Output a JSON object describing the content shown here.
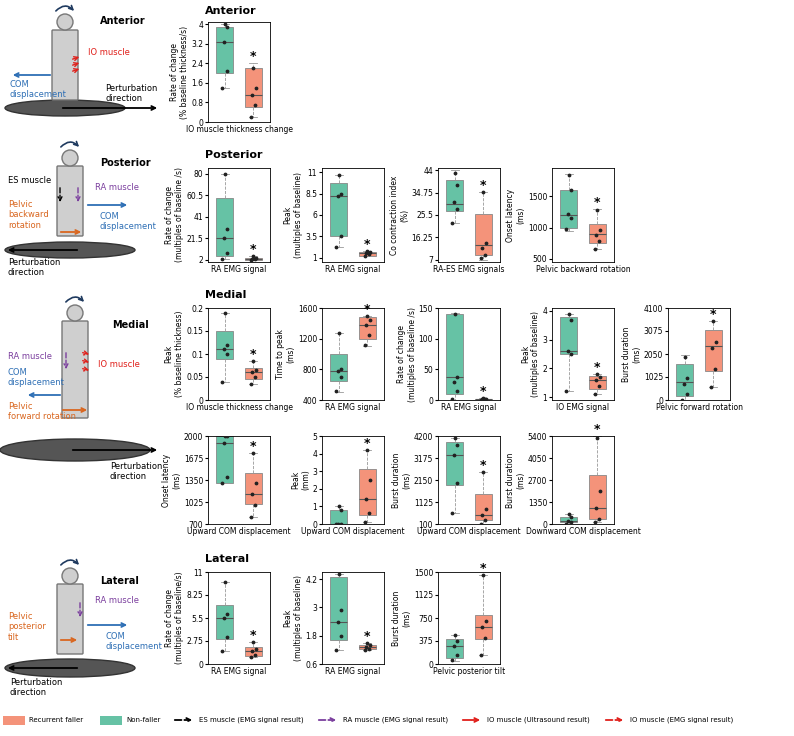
{
  "sections": [
    {
      "title": "Anterior",
      "diagram_labels": [
        "Anterior",
        "COM\ndisplacement",
        "IO muscle",
        "Perturbation\ndirection"
      ]
    },
    {
      "title": "Posterior",
      "diagram_labels": [
        "Posterior",
        "ES muscle",
        "RA muscle",
        "Pelvic\nbackward\nrotation",
        "COM\ndisplacement",
        "Perturbation\ndirection"
      ]
    },
    {
      "title": "Medial",
      "diagram_labels": [
        "Medial",
        "RA muscle",
        "COM\ndisplacement",
        "IO muscle",
        "Pelvic\nforward rotation",
        "Perturbation\ndirection"
      ]
    },
    {
      "title": "Lateral",
      "diagram_labels": [
        "Lateral",
        "RA muscle",
        "Pelvic\nposterior\ntilt",
        "COM\ndisplacement",
        "Perturbation\ndirection"
      ]
    }
  ],
  "legend": {
    "groups": [
      {
        "name": "Recurrent faller",
        "color": "#f4937a"
      },
      {
        "name": "Non-faller",
        "color": "#66c2a5"
      }
    ],
    "arrows": [
      {
        "name": "ES muscle (EMG signal result)",
        "color": "#000000",
        "line_style": "dashed"
      },
      {
        "name": "RA muscle (EMG signal result)",
        "color": "#7b3f9e",
        "line_style": "dashed"
      },
      {
        "name": "IO muscle (Ultrasound result)",
        "color": "#e0201b",
        "line_style": "solid"
      },
      {
        "name": "IO muscle (EMG signal result)",
        "color": "#e0201b",
        "line_style": "dashed"
      }
    ]
  },
  "chart_data": [
    {
      "type": "box",
      "ylabel": "Rate of change\n(% baseline thickness/s)",
      "xlabel": "IO muscle thickness change",
      "ylim": [
        0,
        4.1
      ],
      "yticks": [
        0,
        0.8,
        1.6,
        2.4,
        3.2,
        4
      ],
      "tick_labels": "y",
      "significance": "*",
      "series": [
        {
          "name": "Non-faller",
          "color": "#66c2a5",
          "whislo": 1.4,
          "q1": 2.0,
          "med": 3.3,
          "q3": 3.9,
          "whishi": 4.0,
          "points": [
            1.4,
            2.1,
            3.3,
            3.9,
            4.0
          ]
        },
        {
          "name": "Recurrent faller",
          "color": "#f4937a",
          "whislo": 0.2,
          "q1": 0.6,
          "med": 1.1,
          "q3": 2.2,
          "whishi": 2.4,
          "points": [
            0.2,
            0.7,
            1.1,
            1.4,
            2.2
          ]
        }
      ]
    },
    {
      "type": "box",
      "ylabel": "Rate of change\n(multiples of baseline /s)",
      "xlabel": "RA EMG signal",
      "ylim": [
        0,
        85
      ],
      "yticks": [
        2,
        21.5,
        41,
        60.5,
        80
      ],
      "tick_labels": "y",
      "significance": "*",
      "series": [
        {
          "name": "Non-faller",
          "color": "#66c2a5",
          "whislo": 3,
          "q1": 5,
          "med": 22,
          "q3": 58,
          "whishi": 80,
          "points": [
            3,
            8,
            22,
            30,
            80
          ]
        },
        {
          "name": "Recurrent faller",
          "color": "#f4937a",
          "whislo": 1.5,
          "q1": 2,
          "med": 2.8,
          "q3": 3.8,
          "whishi": 5,
          "points": [
            1.5,
            2.5,
            2.8,
            4,
            5
          ]
        }
      ]
    },
    {
      "type": "box",
      "ylabel": "Peak\n(multiples of baseline)",
      "xlabel": "RA EMG signal",
      "ylim": [
        0.5,
        11.5
      ],
      "yticks": [
        1,
        3.5,
        6,
        8.5,
        11
      ],
      "tick_labels": "y",
      "significance": "*",
      "series": [
        {
          "name": "Non-faller",
          "color": "#66c2a5",
          "whislo": 2.3,
          "q1": 3.5,
          "med": 8.2,
          "q3": 9.8,
          "whishi": 10.7,
          "points": [
            2.3,
            3.6,
            8.2,
            8.5,
            10.7
          ]
        },
        {
          "name": "Recurrent faller",
          "color": "#f4937a",
          "whislo": 1.2,
          "q1": 1.25,
          "med": 1.5,
          "q3": 1.7,
          "whishi": 1.8,
          "points": [
            1.2,
            1.4,
            1.5,
            1.7,
            1.8
          ]
        }
      ]
    },
    {
      "type": "box",
      "ylabel": "Co contraction index\n(%)",
      "xlabel": "RA-ES EMG signals",
      "ylim": [
        6,
        45
      ],
      "yticks": [
        7,
        16.25,
        25.5,
        34.75,
        44
      ],
      "tick_labels": "y",
      "significance": "*",
      "series": [
        {
          "name": "Non-faller",
          "color": "#66c2a5",
          "whislo": 22,
          "q1": 27,
          "med": 30,
          "q3": 40,
          "whishi": 44,
          "points": [
            22,
            28,
            31,
            38,
            43
          ]
        },
        {
          "name": "Recurrent faller",
          "color": "#f4937a",
          "whislo": 7,
          "q1": 9,
          "med": 13,
          "q3": 26,
          "whishi": 35,
          "points": [
            7.5,
            9,
            12,
            14,
            35
          ]
        }
      ]
    },
    {
      "type": "box",
      "ylabel": "Onset latency\n(ms)",
      "xlabel": "Pelvic backward rotation",
      "ylim": [
        450,
        1950
      ],
      "yticks": [
        500,
        1000,
        1500
      ],
      "tick_labels": "y",
      "significance": "*",
      "series": [
        {
          "name": "Non-faller",
          "color": "#66c2a5",
          "whislo": 950,
          "q1": 1000,
          "med": 1200,
          "q3": 1600,
          "whishi": 1850,
          "points": [
            980,
            1150,
            1220,
            1600,
            1840
          ]
        },
        {
          "name": "Recurrent faller",
          "color": "#f4937a",
          "whislo": 650,
          "q1": 750,
          "med": 900,
          "q3": 1050,
          "whishi": 1300,
          "points": [
            660,
            780,
            880,
            960,
            1280
          ]
        }
      ]
    },
    {
      "type": "box",
      "ylabel": "Peak\n(% baseline thickness)",
      "xlabel": "IO muscle thickness change",
      "ylim": [
        0,
        0.2
      ],
      "yticks": [
        0,
        0.05,
        0.1,
        0.15,
        0.2
      ],
      "tick_labels": "y",
      "significance": "*",
      "series": [
        {
          "name": "Non-faller",
          "color": "#66c2a5",
          "whislo": 0.04,
          "q1": 0.09,
          "med": 0.11,
          "q3": 0.15,
          "whishi": 0.19,
          "points": [
            0.04,
            0.1,
            0.11,
            0.12,
            0.19
          ]
        },
        {
          "name": "Recurrent faller",
          "color": "#f4937a",
          "whislo": 0.035,
          "q1": 0.045,
          "med": 0.06,
          "q3": 0.07,
          "whishi": 0.085,
          "points": [
            0.035,
            0.05,
            0.06,
            0.065,
            0.085
          ]
        }
      ]
    },
    {
      "type": "box",
      "ylabel": "Time to peak\n(ms)",
      "xlabel": "RA EMG signal",
      "ylim": [
        400,
        1600
      ],
      "yticks": [
        400,
        800,
        1200,
        1600
      ],
      "tick_labels": "y",
      "significance": "*",
      "series": [
        {
          "name": "Non-faller",
          "color": "#66c2a5",
          "whislo": 500,
          "q1": 650,
          "med": 780,
          "q3": 1000,
          "whishi": 1280,
          "points": [
            520,
            700,
            780,
            800,
            1280
          ]
        },
        {
          "name": "Recurrent faller",
          "color": "#f4937a",
          "whislo": 1100,
          "q1": 1200,
          "med": 1380,
          "q3": 1480,
          "whishi": 1500,
          "points": [
            1120,
            1250,
            1380,
            1450,
            1500
          ]
        }
      ]
    },
    {
      "type": "box",
      "ylabel": "Rate of change\n(multiples of baseline /s)",
      "xlabel": "RA EMG signal",
      "ylim": [
        0,
        150
      ],
      "yticks": [
        0,
        50,
        100,
        150
      ],
      "tick_labels": "y",
      "significance": "*",
      "series": [
        {
          "name": "Non-faller",
          "color": "#66c2a5",
          "whislo": 0,
          "q1": 10,
          "med": 38,
          "q3": 140,
          "whishi": 142,
          "points": [
            2,
            15,
            30,
            38,
            140
          ]
        },
        {
          "name": "Recurrent faller",
          "color": "#f4937a",
          "whislo": 0.5,
          "q1": 1,
          "med": 1.5,
          "q3": 2,
          "whishi": 2.5,
          "points": [
            0.5,
            1,
            1.5,
            2,
            2.5
          ]
        }
      ]
    },
    {
      "type": "box",
      "ylabel": "Peak\n(multiples of baseline)",
      "xlabel": "IO EMG signal",
      "ylim": [
        0.9,
        4.1
      ],
      "yticks": [
        1,
        2,
        3,
        4
      ],
      "tick_labels": "y",
      "significance": "*",
      "series": [
        {
          "name": "Non-faller",
          "color": "#66c2a5",
          "whislo": 1.2,
          "q1": 2.5,
          "med": 2.6,
          "q3": 3.8,
          "whishi": 3.9,
          "points": [
            1.2,
            2.5,
            2.6,
            3.7,
            3.9
          ]
        },
        {
          "name": "Recurrent faller",
          "color": "#f4937a",
          "whislo": 1.1,
          "q1": 1.3,
          "med": 1.6,
          "q3": 1.75,
          "whishi": 1.8,
          "points": [
            1.1,
            1.4,
            1.6,
            1.7,
            1.8
          ]
        }
      ]
    },
    {
      "type": "box",
      "ylabel": "Burst duration\n(ms)",
      "xlabel": "Pelvic forward rotation",
      "ylim": [
        0,
        4100
      ],
      "yticks": [
        0,
        1025,
        2050,
        3075,
        4100
      ],
      "tick_labels": "y",
      "significance": "*",
      "series": [
        {
          "name": "Non-faller",
          "color": "#66c2a5",
          "whislo": 0,
          "q1": 200,
          "med": 800,
          "q3": 1600,
          "whishi": 2000,
          "points": [
            0,
            250,
            700,
            1000,
            1900
          ]
        },
        {
          "name": "Recurrent faller",
          "color": "#f4937a",
          "whislo": 600,
          "q1": 1300,
          "med": 2400,
          "q3": 3100,
          "whishi": 3500,
          "points": [
            600,
            1400,
            2300,
            2600,
            3500
          ]
        }
      ]
    },
    {
      "type": "box",
      "ylabel": "Onset latency\n(ms)",
      "xlabel": "Upward COM displacement",
      "ylim": [
        700,
        2000
      ],
      "yticks": [
        700,
        1025,
        1350,
        1675,
        2000
      ],
      "tick_labels": "y",
      "significance": "*",
      "series": [
        {
          "name": "Non-faller",
          "color": "#66c2a5",
          "whislo": 1300,
          "q1": 1300,
          "med": 1900,
          "q3": 2000,
          "whishi": 2000,
          "points": [
            1300,
            1400,
            1900,
            2000,
            2000
          ]
        },
        {
          "name": "Recurrent faller",
          "color": "#f4937a",
          "whislo": 800,
          "q1": 1000,
          "med": 1150,
          "q3": 1450,
          "whishi": 1750,
          "points": [
            800,
            980,
            1150,
            1300,
            1750
          ]
        }
      ]
    },
    {
      "type": "box",
      "ylabel": "Peak\n(mm)",
      "xlabel": "Upward COM displacement",
      "ylim": [
        0,
        5
      ],
      "yticks": [
        0,
        1,
        2,
        3,
        4,
        5
      ],
      "tick_labels": "y",
      "significance": "*",
      "series": [
        {
          "name": "Non-faller",
          "color": "#66c2a5",
          "whislo": 0,
          "q1": 0,
          "med": 0,
          "q3": 0.8,
          "whishi": 1,
          "points": [
            0,
            0,
            0,
            0.8,
            1
          ]
        },
        {
          "name": "Recurrent faller",
          "color": "#f4937a",
          "whislo": 0.1,
          "q1": 0.5,
          "med": 1.4,
          "q3": 3.1,
          "whishi": 4.2,
          "points": [
            0.1,
            0.6,
            1.4,
            2.5,
            4.2
          ]
        }
      ]
    },
    {
      "type": "box",
      "ylabel": "Burst duration\n(ms)",
      "xlabel": "Upward COM displacement",
      "ylim": [
        100,
        4200
      ],
      "yticks": [
        100,
        1125,
        2150,
        3175,
        4200
      ],
      "tick_labels": "y",
      "significance": "*",
      "series": [
        {
          "name": "Non-faller",
          "color": "#66c2a5",
          "whislo": 600,
          "q1": 1900,
          "med": 3300,
          "q3": 3900,
          "whishi": 4100,
          "points": [
            600,
            2000,
            3300,
            3800,
            4100
          ]
        },
        {
          "name": "Recurrent faller",
          "color": "#f4937a",
          "whislo": 100,
          "q1": 300,
          "med": 500,
          "q3": 1500,
          "whishi": 2500,
          "points": [
            120,
            300,
            500,
            800,
            2500
          ]
        }
      ]
    },
    {
      "type": "box",
      "ylabel": "Burst duration\n(ms)",
      "xlabel": "Downward COM displacement",
      "ylim": [
        0,
        5400
      ],
      "yticks": [
        0,
        1350,
        2700,
        4050,
        5400
      ],
      "tick_labels": "y",
      "significance": "*",
      "series": [
        {
          "name": "Non-faller",
          "color": "#66c2a5",
          "whislo": 0,
          "q1": 100,
          "med": 200,
          "q3": 450,
          "whishi": 600,
          "points": [
            0,
            100,
            200,
            400,
            600
          ]
        },
        {
          "name": "Recurrent faller",
          "color": "#f4937a",
          "whislo": 100,
          "q1": 300,
          "med": 1000,
          "q3": 3000,
          "whishi": 5400,
          "points": [
            120,
            300,
            1000,
            2000,
            5300
          ]
        }
      ]
    },
    {
      "type": "box",
      "ylabel": "Rate of change\n(multiples of baseline/s)",
      "xlabel": "RA EMG signal",
      "ylim": [
        0,
        11
      ],
      "yticks": [
        0,
        2.75,
        5.5,
        8.25,
        11
      ],
      "tick_labels": "y",
      "significance": "*",
      "series": [
        {
          "name": "Non-faller",
          "color": "#66c2a5",
          "whislo": 1.5,
          "q1": 3,
          "med": 5.5,
          "q3": 7,
          "whishi": 9.8,
          "points": [
            1.5,
            3.2,
            5.5,
            6,
            9.8
          ]
        },
        {
          "name": "Recurrent faller",
          "color": "#f4937a",
          "whislo": 0.8,
          "q1": 1,
          "med": 1.5,
          "q3": 2,
          "whishi": 2.6,
          "points": [
            0.8,
            1.1,
            1.5,
            1.8,
            2.6
          ]
        }
      ]
    },
    {
      "type": "box",
      "ylabel": "Peak\n(multiples of baseline)",
      "xlabel": "RA EMG signal",
      "ylim": [
        0.6,
        4.5
      ],
      "yticks": [
        0.6,
        1.8,
        3,
        4.2
      ],
      "tick_labels": "y",
      "significance": "*",
      "series": [
        {
          "name": "Non-faller",
          "color": "#66c2a5",
          "whislo": 1.2,
          "q1": 1.6,
          "med": 2.4,
          "q3": 4.3,
          "whishi": 4.4,
          "points": [
            1.2,
            1.8,
            2.4,
            2.9,
            4.4
          ]
        },
        {
          "name": "Recurrent faller",
          "color": "#f4937a",
          "whislo": 1.2,
          "q1": 1.25,
          "med": 1.3,
          "q3": 1.4,
          "whishi": 1.5,
          "points": [
            1.2,
            1.25,
            1.3,
            1.4,
            1.5
          ]
        }
      ]
    },
    {
      "type": "box",
      "ylabel": "Burst duration\n(ms)",
      "xlabel": "Pelvic posterior tilt",
      "ylim": [
        0,
        1500
      ],
      "yticks": [
        0,
        375,
        750,
        1125,
        1500
      ],
      "tick_labels": "y",
      "significance": "*",
      "series": [
        {
          "name": "Non-faller",
          "color": "#66c2a5",
          "whislo": 50,
          "q1": 100,
          "med": 300,
          "q3": 400,
          "whishi": 480,
          "points": [
            60,
            150,
            300,
            380,
            480
          ]
        },
        {
          "name": "Recurrent faller",
          "color": "#f4937a",
          "whislo": 150,
          "q1": 400,
          "med": 600,
          "q3": 800,
          "whishi": 1450,
          "points": [
            150,
            420,
            600,
            700,
            1450
          ]
        }
      ]
    }
  ]
}
